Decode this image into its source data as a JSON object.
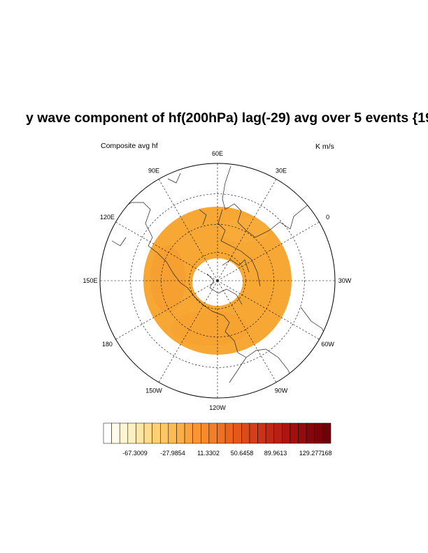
{
  "title": "y wave component of hf(200hPa) lag(-29) avg over 5 events {19",
  "left_subtitle": "Composite avg hf",
  "right_subtitle": "K m/s",
  "map": {
    "projection": "polar stereographic (north pole)",
    "longitude_labels": [
      "60E",
      "30E",
      "0",
      "30W",
      "60W",
      "90W",
      "120W",
      "150W",
      "180",
      "150E",
      "120E",
      "90E"
    ],
    "field_color": "#f7a733",
    "colormap": "white-yellow-orange-red"
  },
  "colorbar": {
    "tick_labels": [
      "-67.3009",
      "-27.9854",
      "11.3302",
      "50.6458",
      "89.9613",
      "129.277",
      "168"
    ],
    "colors": [
      "#ffffff",
      "#fffbe8",
      "#fff5d0",
      "#ffefba",
      "#ffe7a3",
      "#ffdc8c",
      "#ffd176",
      "#fec664",
      "#fdba55",
      "#fcae47",
      "#fba23c",
      "#f99633",
      "#f78a2d",
      "#f37e28",
      "#ef7124",
      "#ea6420",
      "#e4571d",
      "#dd4a1a",
      "#d53e18",
      "#cc3316",
      "#c22914",
      "#b72012",
      "#ab1710",
      "#9f100e",
      "#930b0c",
      "#86070b",
      "#7a040a",
      "#6e0209"
    ]
  }
}
